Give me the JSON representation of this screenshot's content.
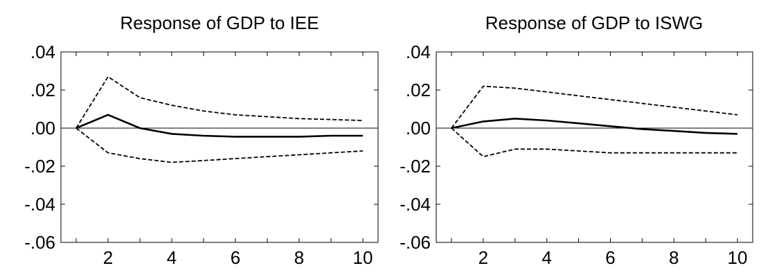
{
  "chart_data": [
    {
      "type": "line",
      "title": "Response of GDP to IEE",
      "xlabel": "",
      "ylabel": "",
      "xlim": [
        1,
        10
      ],
      "ylim": [
        -0.06,
        0.04
      ],
      "x_ticks": [
        "2",
        "4",
        "6",
        "8",
        "10"
      ],
      "y_ticks": [
        ".04",
        ".02",
        ".00",
        "-.02",
        "-.04",
        "-.06"
      ],
      "x": [
        1,
        2,
        3,
        4,
        5,
        6,
        7,
        8,
        9,
        10
      ],
      "series": [
        {
          "style": "solid",
          "values": [
            0.0,
            0.007,
            0.0,
            -0.003,
            -0.004,
            -0.0045,
            -0.0045,
            -0.0045,
            -0.004,
            -0.004
          ]
        },
        {
          "style": "dashed",
          "values": [
            0.0,
            0.027,
            0.016,
            0.012,
            0.009,
            0.007,
            0.006,
            0.005,
            0.0045,
            0.004
          ]
        },
        {
          "style": "dashed",
          "values": [
            0.0,
            -0.013,
            -0.016,
            -0.018,
            -0.017,
            -0.016,
            -0.015,
            -0.014,
            -0.013,
            -0.012
          ]
        }
      ],
      "zero_line": true
    },
    {
      "type": "line",
      "title": "Response of GDP to ISWG",
      "xlabel": "",
      "ylabel": "",
      "xlim": [
        1,
        10
      ],
      "ylim": [
        -0.06,
        0.04
      ],
      "x_ticks": [
        "2",
        "4",
        "6",
        "8",
        "10"
      ],
      "y_ticks": [
        ".04",
        ".02",
        ".00",
        "-.02",
        "-.04",
        "-.06"
      ],
      "x": [
        1,
        2,
        3,
        4,
        5,
        6,
        7,
        8,
        9,
        10
      ],
      "series": [
        {
          "style": "solid",
          "values": [
            0.0,
            0.0035,
            0.005,
            0.004,
            0.0025,
            0.001,
            -0.0005,
            -0.0015,
            -0.0025,
            -0.003
          ]
        },
        {
          "style": "dashed",
          "values": [
            0.0,
            0.022,
            0.021,
            0.019,
            0.017,
            0.015,
            0.013,
            0.011,
            0.009,
            0.007
          ]
        },
        {
          "style": "dashed",
          "values": [
            0.0,
            -0.015,
            -0.011,
            -0.011,
            -0.012,
            -0.013,
            -0.013,
            -0.013,
            -0.013,
            -0.013
          ]
        }
      ],
      "zero_line": true
    }
  ]
}
